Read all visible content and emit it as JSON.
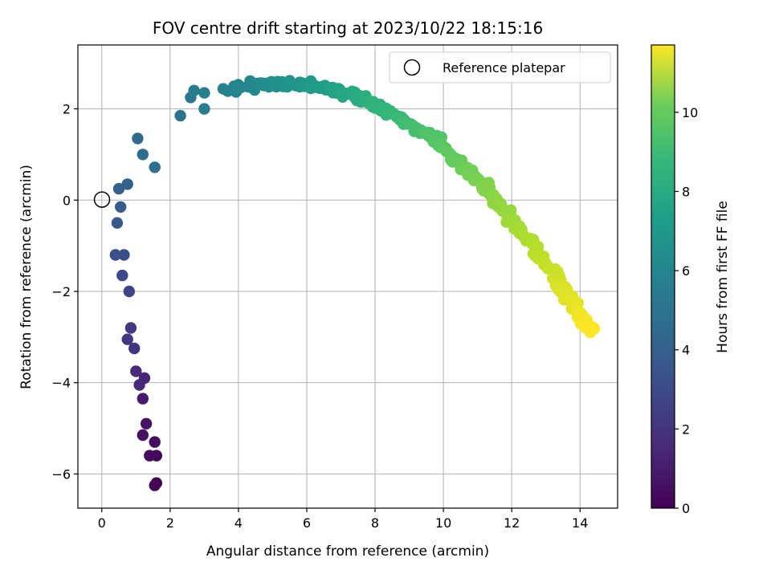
{
  "chart_data": {
    "type": "scatter",
    "title": "FOV centre drift starting at 2023/10/22 18:15:16",
    "xlabel": "Angular distance from reference (arcmin)",
    "ylabel": "Rotation from reference (arcmin)",
    "xlim": [
      -0.7,
      15.1
    ],
    "ylim": [
      -6.75,
      3.4
    ],
    "xticks": [
      0,
      2,
      4,
      6,
      8,
      10,
      12,
      14
    ],
    "yticks": [
      -6,
      -4,
      -2,
      0,
      2
    ],
    "grid": true,
    "legend": {
      "location": "top-right",
      "entries": [
        "Reference platepar"
      ]
    },
    "reference_point": {
      "x": 0,
      "y": 0,
      "label": "Reference platepar"
    },
    "colorbar": {
      "label": "Hours from first FF file",
      "colormap": "viridis",
      "range": [
        0,
        11.7
      ],
      "ticks": [
        0,
        2,
        4,
        6,
        8,
        10
      ]
    },
    "series_control_points": {
      "hours": [
        0,
        0.8,
        1.6,
        2.2,
        2.6,
        3.2,
        3.6,
        4.2,
        4.8,
        5.5,
        6.5,
        7.5,
        8.5,
        9.5,
        10.5,
        11.2,
        11.7
      ],
      "x": [
        1.6,
        1.4,
        1.0,
        0.85,
        0.6,
        0.4,
        0.5,
        1.1,
        2.6,
        4.5,
        6.5,
        8.0,
        9.8,
        11.3,
        12.8,
        13.7,
        14.3
      ],
      "y": [
        -6.2,
        -5.3,
        -4.0,
        -2.9,
        -1.7,
        -0.8,
        0.2,
        1.0,
        2.2,
        2.55,
        2.5,
        2.1,
        1.3,
        0.2,
        -1.2,
        -2.2,
        -2.85
      ]
    },
    "n_points": 300,
    "scatter_points": [
      [
        1.6,
        -6.2,
        0.0
      ],
      [
        1.55,
        -6.25,
        0.05
      ],
      [
        1.6,
        -5.6,
        0.2
      ],
      [
        1.4,
        -5.6,
        0.3
      ],
      [
        1.55,
        -5.3,
        0.4
      ],
      [
        1.3,
        -4.9,
        0.6
      ],
      [
        1.2,
        -5.15,
        0.5
      ],
      [
        1.2,
        -4.35,
        0.9
      ],
      [
        1.25,
        -3.9,
        1.2
      ],
      [
        1.0,
        -3.75,
        1.4
      ],
      [
        1.1,
        -4.05,
        1.3
      ],
      [
        0.95,
        -3.25,
        1.8
      ],
      [
        0.85,
        -2.8,
        2.0
      ],
      [
        0.75,
        -3.05,
        1.9
      ],
      [
        0.8,
        -2.0,
        2.4
      ],
      [
        0.6,
        -1.65,
        2.6
      ],
      [
        0.65,
        -1.2,
        2.8
      ],
      [
        0.4,
        -1.2,
        2.9
      ],
      [
        0.45,
        -0.5,
        3.2
      ],
      [
        0.55,
        -0.15,
        3.4
      ],
      [
        0.5,
        0.25,
        3.6
      ],
      [
        0.75,
        0.35,
        3.7
      ],
      [
        1.05,
        1.35,
        4.0
      ],
      [
        1.2,
        1.0,
        4.1
      ],
      [
        1.55,
        0.72,
        4.2
      ],
      [
        2.3,
        1.85,
        4.5
      ],
      [
        2.6,
        2.25,
        4.7
      ],
      [
        2.7,
        2.4,
        4.9
      ],
      [
        3.0,
        2.0,
        5.0
      ],
      [
        3.0,
        2.35,
        5.1
      ]
    ]
  }
}
